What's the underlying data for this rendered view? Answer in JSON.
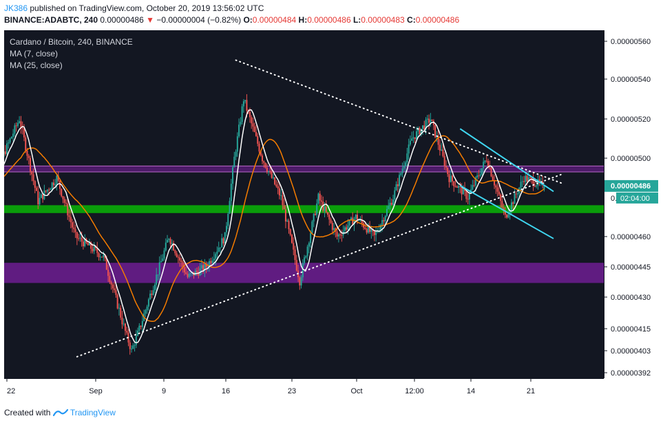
{
  "header": {
    "user": "JK386",
    "published": "published on TradingView.com, October 20, 2019 13:56:02 UTC",
    "symbol_full": "BINANCE:ADABTC, 240",
    "last_price": "0.00000486",
    "change_arrow": "▼",
    "change": "−0.00000004 (−0.82%)",
    "o_label": "O:",
    "o_val": "0.00000484",
    "h_label": "H:",
    "h_val": "0.00000486",
    "l_label": "L:",
    "l_val": "0.00000483",
    "c_label": "C:",
    "c_val": "0.00000486"
  },
  "legend": {
    "title": "Cardano / Bitcoin, 240, BINANCE",
    "ma7": "MA (7, close)",
    "ma25": "MA (25, close)"
  },
  "footer": {
    "created_with": "Created with",
    "brand": "TradingView"
  },
  "colors": {
    "background": "#131722",
    "up": "#26a69a",
    "down": "#ef5350",
    "ma7": "#ffffff",
    "ma25": "#f57c00",
    "trend": "#ffffff",
    "channel": "#3fd6f0",
    "support_zone": "#0a9d0a",
    "resistance_zone": "#7b1fa2",
    "price_tag": "#26a69a"
  },
  "chart_data": {
    "type": "candlestick",
    "symbol": "BINANCE:ADABTC",
    "timeframe": "240",
    "x_ticks": [
      "22",
      "Sep",
      "9",
      "16",
      "23",
      "Oct",
      "12:00",
      "14",
      "21"
    ],
    "y_ticks": [
      5.6e-06,
      5.4e-06,
      5.2e-06,
      5e-06,
      4.6e-06,
      4.45e-06,
      4.3e-06,
      4.15e-06,
      4.03e-06,
      3.92e-06
    ],
    "y_tick_labels": [
      "0.00000560",
      "0.00000540",
      "0.00000520",
      "0.00000500",
      "0.00000460",
      "0.00000445",
      "0.00000430",
      "0.00000415",
      "0.00000403",
      "0.00000392"
    ],
    "ylim": [
      3.89e-06,
      5.65e-06
    ],
    "price_tag": "0.00000486",
    "price_tag_value": 4.86e-06,
    "countdown_tag": "02:04:00",
    "partial_tick_label": "0.",
    "path_points": [
      [
        "Aug 21",
        4.79e-06
      ],
      [
        "Aug 22",
        4.88e-06
      ],
      [
        "Aug 25",
        5.2e-06
      ],
      [
        "Aug 27",
        4.78e-06
      ],
      [
        "Aug 29",
        4.9e-06
      ],
      [
        "Aug 31",
        4.6e-06
      ],
      [
        "Sep 3",
        4.5e-06
      ],
      [
        "Sep 6",
        4.03e-06
      ],
      [
        "Sep 9",
        4.45e-06
      ],
      [
        "Sep 10",
        4.6e-06
      ],
      [
        "Sep 12",
        4.4e-06
      ],
      [
        "Sep 14",
        4.45e-06
      ],
      [
        "Sep 16",
        4.6e-06
      ],
      [
        "Sep 17",
        5e-06
      ],
      [
        "Sep 18",
        5.3e-06
      ],
      [
        "Sep 20",
        5e-06
      ],
      [
        "Sep 22",
        4.8e-06
      ],
      [
        "Sep 24",
        4.38e-06
      ],
      [
        "Sep 26",
        4.8e-06
      ],
      [
        "Sep 28",
        4.6e-06
      ],
      [
        "Sep 30",
        4.7e-06
      ],
      [
        "Oct 2",
        4.6e-06
      ],
      [
        "Oct 4",
        4.8e-06
      ],
      [
        "Oct 6",
        5.1e-06
      ],
      [
        "Oct 8",
        5.2e-06
      ],
      [
        "Oct 10",
        4.9e-06
      ],
      [
        "Oct 12",
        4.8e-06
      ],
      [
        "Oct 14",
        5e-06
      ],
      [
        "Oct 16",
        4.7e-06
      ],
      [
        "Oct 17",
        4.8e-06
      ],
      [
        "Oct 18",
        4.9e-06
      ],
      [
        "Oct 20",
        4.86e-06
      ]
    ],
    "ma7_period": 7,
    "ma25_period": 25,
    "zones": [
      {
        "label": "resistance",
        "from": 4.93e-06,
        "to": 4.96e-06
      },
      {
        "label": "support",
        "from": 4.72e-06,
        "to": 4.76e-06
      },
      {
        "label": "demand",
        "from": 4.37e-06,
        "to": 4.47e-06
      }
    ],
    "trendlines": [
      {
        "style": "dotted",
        "from": [
          "Sep 17",
          5.5e-06
        ],
        "to": [
          "Oct 22",
          4.87e-06
        ]
      },
      {
        "style": "dotted",
        "from": [
          "Aug 31",
          4e-06
        ],
        "to": [
          "Oct 22",
          4.92e-06
        ]
      },
      {
        "style": "solid",
        "from": [
          "Oct 11",
          5.15e-06
        ],
        "to": [
          "Oct 21",
          4.83e-06
        ]
      },
      {
        "style": "solid",
        "from": [
          "Oct 11",
          4.86e-06
        ],
        "to": [
          "Oct 21",
          4.59e-06
        ]
      }
    ]
  }
}
